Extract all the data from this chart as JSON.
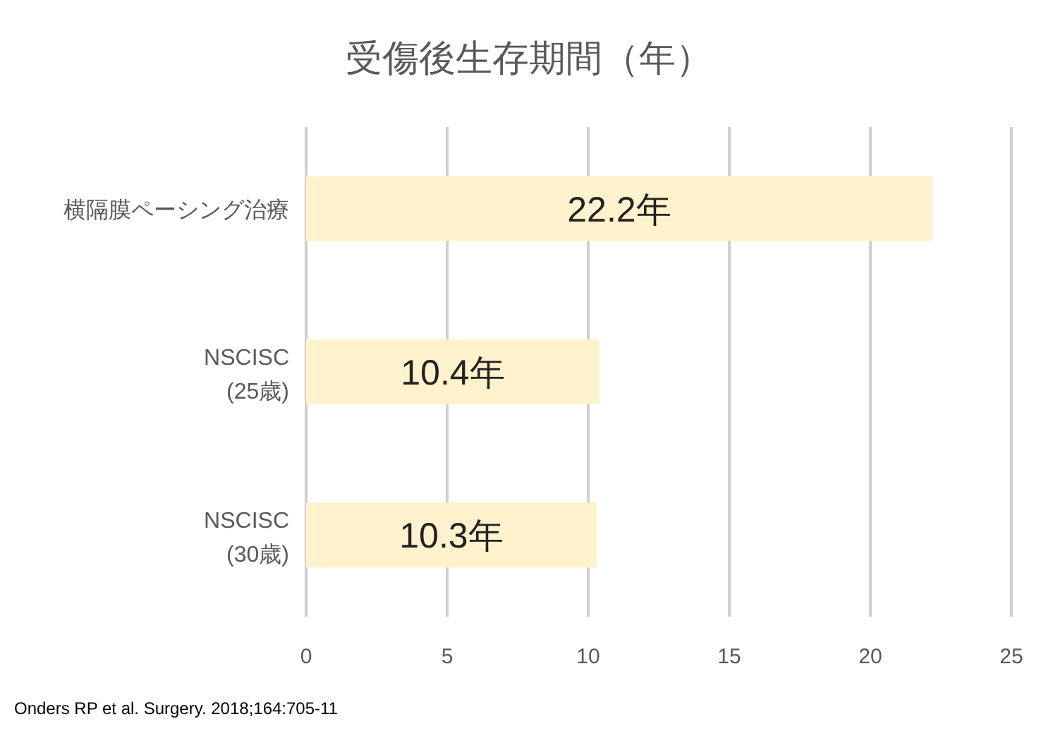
{
  "chart_data": {
    "type": "bar",
    "orientation": "horizontal",
    "title": "受傷後生存期間（年）",
    "categories": [
      "横隔膜ペーシング治療",
      "NSCISC (25歳)",
      "NSCISC (30歳)"
    ],
    "values": [
      22.2,
      10.4,
      10.3
    ],
    "value_labels": [
      "22.2年",
      "10.4年",
      "10.3年"
    ],
    "color": "#fff2cc",
    "xlim": [
      0,
      25
    ],
    "xticks": [
      0,
      5,
      10,
      15,
      20,
      25
    ],
    "grid": "x",
    "annotations": [
      "Onders RP et al. Surgery. 2018;164:705-11"
    ]
  }
}
